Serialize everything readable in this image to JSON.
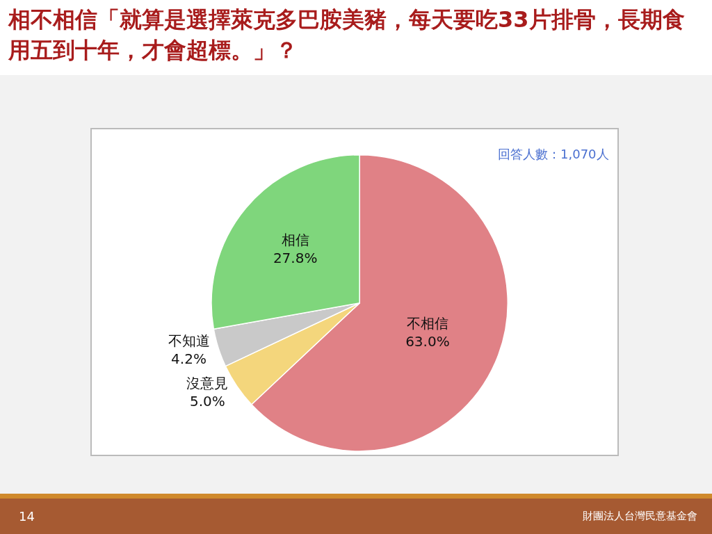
{
  "chart_data": {
    "type": "pie",
    "title": "相不相信「就算是選擇萊克多巴胺美豬，每天要吃33片排骨，長期食用五到十年，才會超標。」？",
    "categories": [
      "不相信",
      "沒意見",
      "不知道",
      "相信"
    ],
    "values": [
      63.0,
      5.0,
      4.2,
      27.8
    ],
    "colors": [
      "#e08186",
      "#f4d67c",
      "#c9c9c9",
      "#7fd67c"
    ],
    "value_labels": [
      "63.0%",
      "5.0%",
      "4.2%",
      "27.8%"
    ],
    "annotations": [
      "回答人數：1,070人",
      "14",
      "財團法人台灣民意基金會"
    ],
    "legend": false
  }
}
